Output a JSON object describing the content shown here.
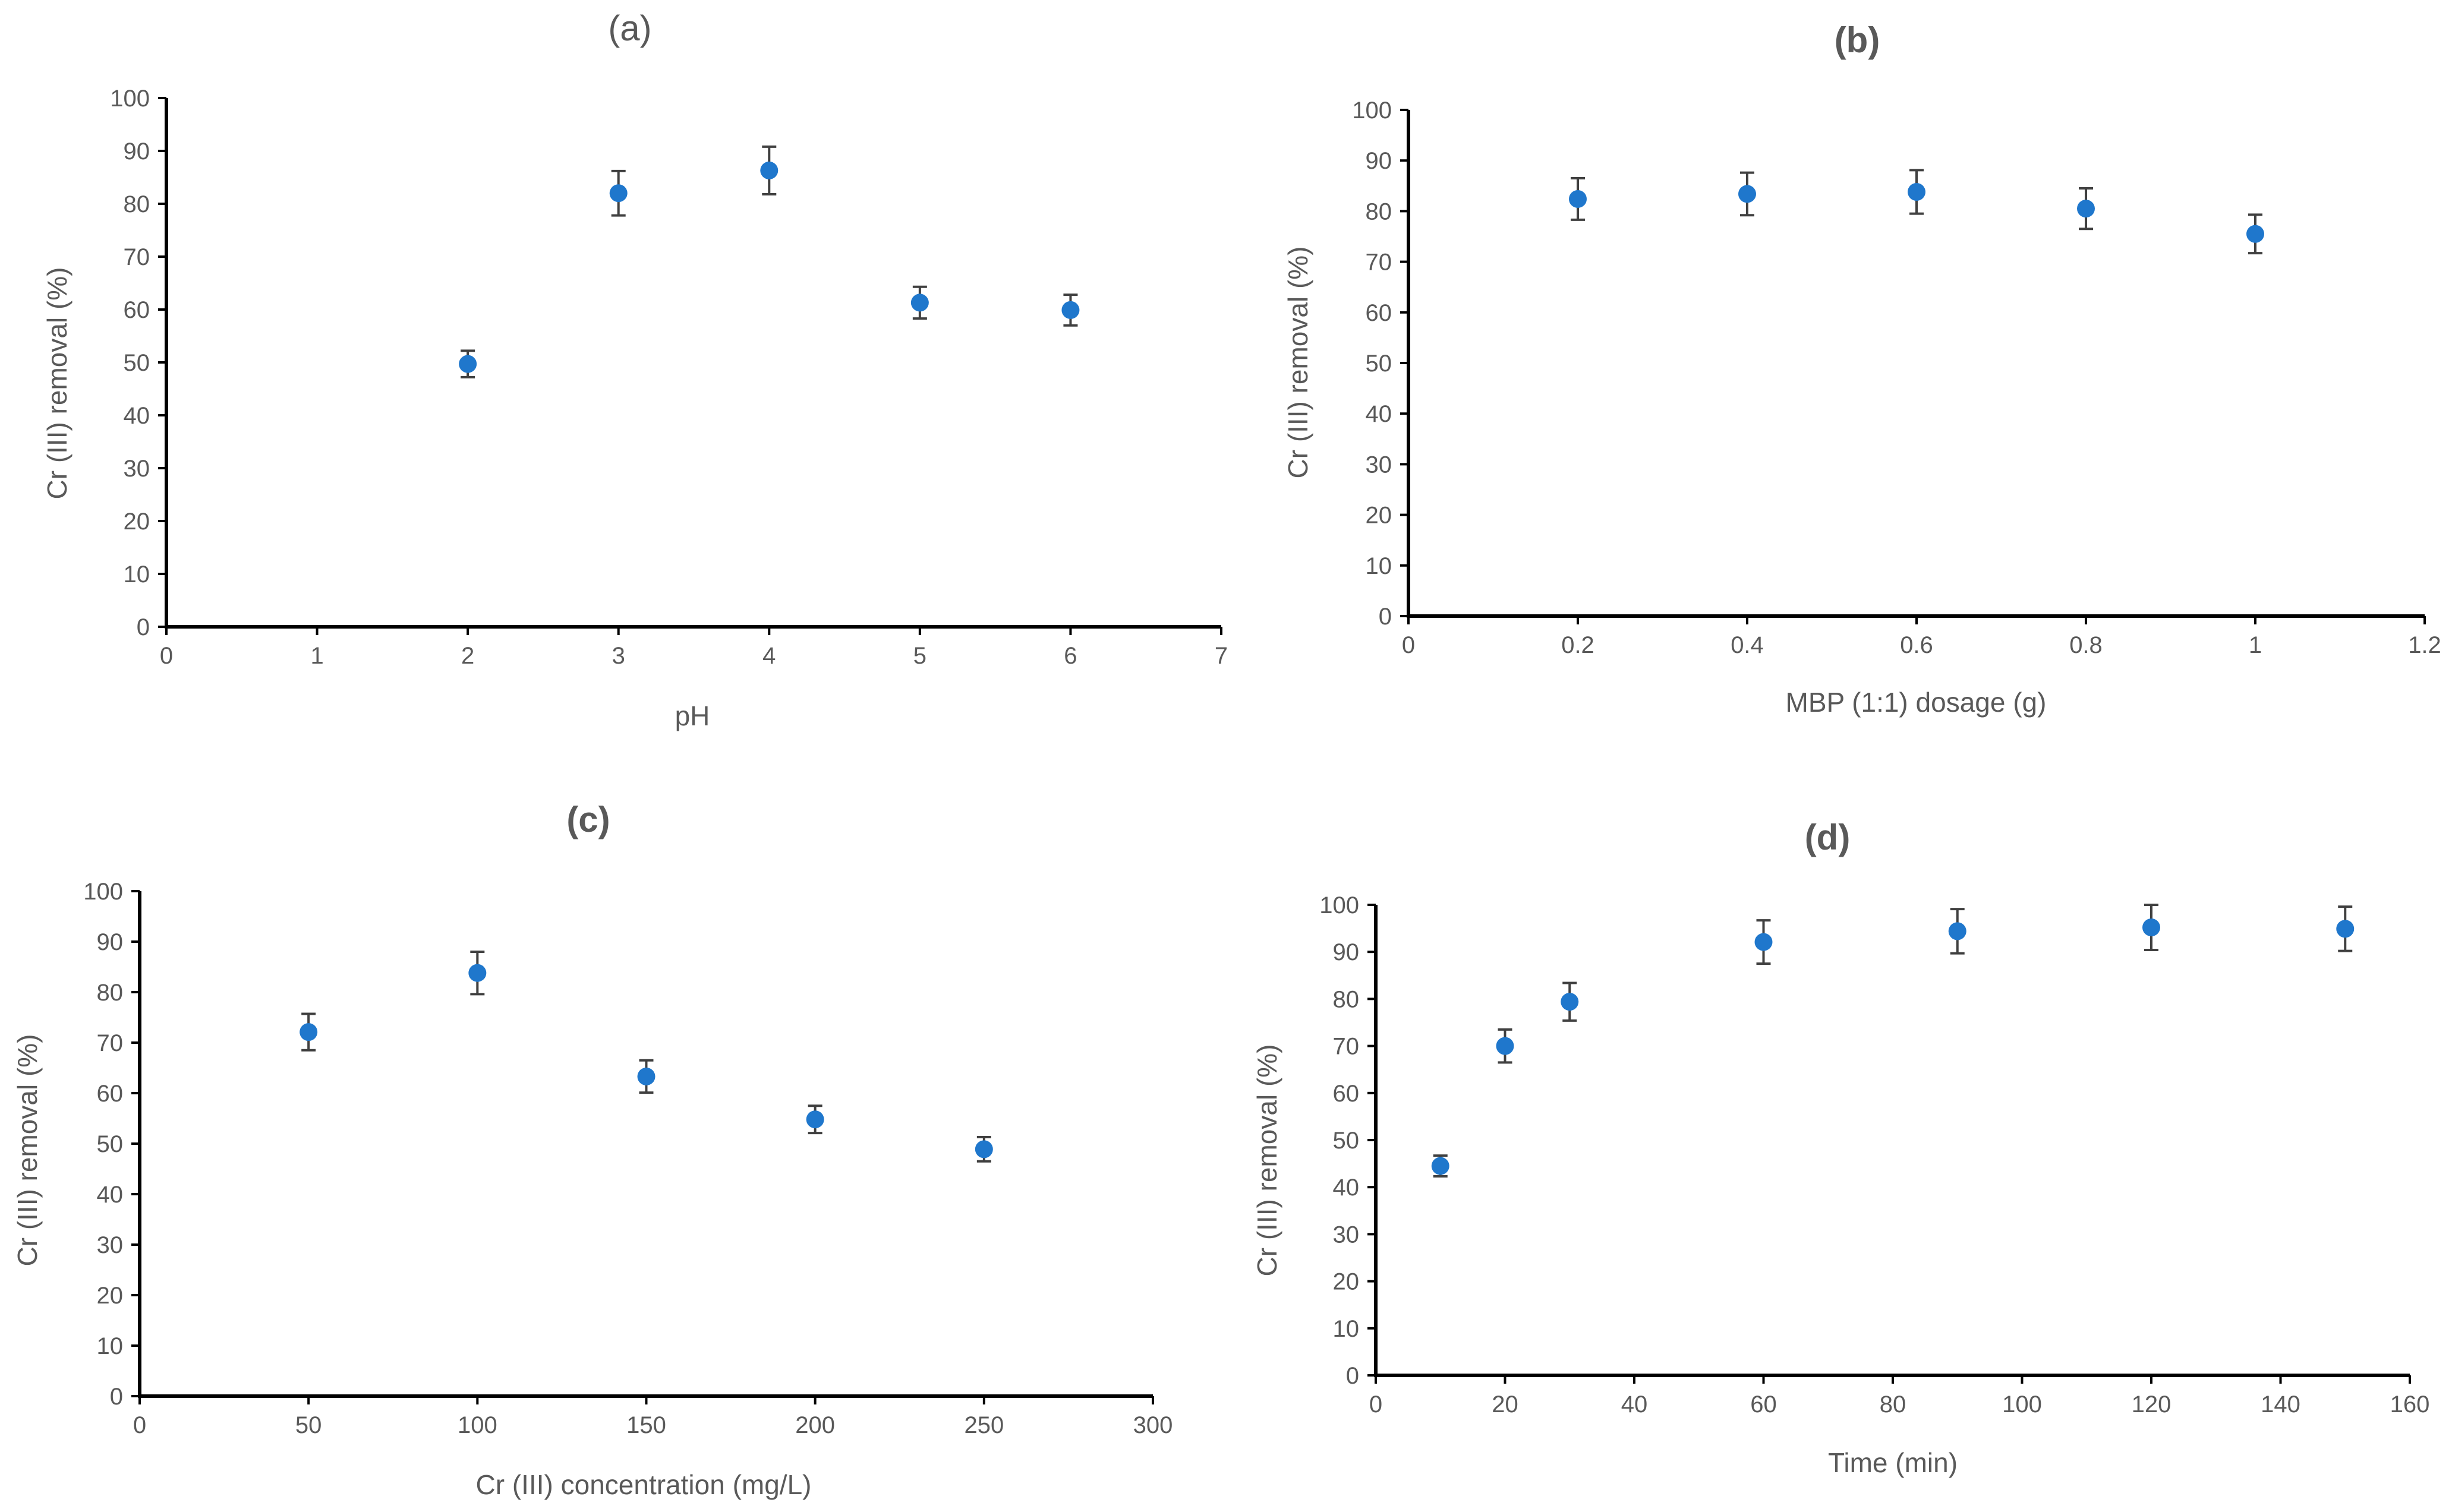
{
  "colors": {
    "marker": "#1f77cc",
    "axis": "#000000",
    "text": "#595959",
    "errorbar": "#404040"
  },
  "chart_data": [
    {
      "id": "a",
      "type": "scatter",
      "title": "(a)",
      "xlabel": "pH",
      "ylabel": "Cr (III) removal (%)",
      "xlim": [
        0,
        7
      ],
      "ylim": [
        0,
        100
      ],
      "xticks": [
        0,
        1,
        2,
        3,
        4,
        5,
        6,
        7
      ],
      "xtick_labels": [
        "0",
        "1",
        "2",
        "3",
        "4",
        "5",
        "6",
        "7"
      ],
      "yticks": [
        0,
        10,
        20,
        30,
        40,
        50,
        60,
        70,
        80,
        90,
        100
      ],
      "ytick_labels": [
        "0",
        "10",
        "20",
        "30",
        "40",
        "50",
        "60",
        "70",
        "80",
        "90",
        "100"
      ],
      "x": [
        2,
        3,
        4,
        5,
        6
      ],
      "y": [
        49.7,
        82,
        86.3,
        61.3,
        59.9
      ],
      "error": [
        2.5,
        4.2,
        4.5,
        3,
        2.9
      ]
    },
    {
      "id": "b",
      "type": "scatter",
      "title": "(b)",
      "xlabel": "MBP (1:1) dosage (g)",
      "ylabel": "Cr (III) removal (%)",
      "xlim": [
        0,
        1.2
      ],
      "ylim": [
        0,
        100
      ],
      "xticks": [
        0,
        0.2,
        0.4,
        0.6,
        0.8,
        1,
        1.2
      ],
      "xtick_labels": [
        "0",
        "0.2",
        "0.4",
        "0.6",
        "0.8",
        "1",
        "1.2"
      ],
      "yticks": [
        0,
        10,
        20,
        30,
        40,
        50,
        60,
        70,
        80,
        90,
        100
      ],
      "ytick_labels": [
        "0",
        "10",
        "20",
        "30",
        "40",
        "50",
        "60",
        "70",
        "80",
        "90",
        "100"
      ],
      "x": [
        0.2,
        0.4,
        0.6,
        0.8,
        1
      ],
      "y": [
        82.4,
        83.4,
        83.8,
        80.5,
        75.5
      ],
      "error": [
        4.1,
        4.2,
        4.3,
        4,
        3.8
      ]
    },
    {
      "id": "c",
      "type": "scatter",
      "title": "(c)",
      "xlabel": "Cr (III)  concentration (mg/L)",
      "ylabel": "Cr (III) removal (%)",
      "xlim": [
        0,
        300
      ],
      "ylim": [
        0,
        100
      ],
      "xticks": [
        0,
        50,
        100,
        150,
        200,
        250,
        300
      ],
      "xtick_labels": [
        "0",
        "50",
        "100",
        "150",
        "200",
        "250",
        "300"
      ],
      "yticks": [
        0,
        10,
        20,
        30,
        40,
        50,
        60,
        70,
        80,
        90,
        100
      ],
      "ytick_labels": [
        "0",
        "10",
        "20",
        "30",
        "40",
        "50",
        "60",
        "70",
        "80",
        "90",
        "100"
      ],
      "x": [
        50,
        100,
        150,
        200,
        250
      ],
      "y": [
        72.1,
        83.8,
        63.3,
        54.8,
        48.9
      ],
      "error": [
        3.6,
        4.2,
        3.2,
        2.7,
        2.4
      ]
    },
    {
      "id": "d",
      "type": "scatter",
      "title": "(d)",
      "xlabel": "Time (min)",
      "ylabel": "Cr (III) removal (%)",
      "xlim": [
        0,
        160
      ],
      "ylim": [
        0,
        100
      ],
      "xticks": [
        0,
        20,
        40,
        60,
        80,
        100,
        120,
        140,
        160
      ],
      "xtick_labels": [
        "0",
        "20",
        "40",
        "60",
        "80",
        "100",
        "120",
        "140",
        "160"
      ],
      "yticks": [
        0,
        10,
        20,
        30,
        40,
        50,
        60,
        70,
        80,
        90,
        100
      ],
      "ytick_labels": [
        "0",
        "10",
        "20",
        "30",
        "40",
        "50",
        "60",
        "70",
        "80",
        "90",
        "100"
      ],
      "x": [
        10,
        20,
        30,
        60,
        90,
        120,
        150
      ],
      "y": [
        44.5,
        70,
        79.4,
        92.1,
        94.4,
        95.2,
        94.9
      ],
      "error": [
        2.2,
        3.5,
        4,
        4.6,
        4.7,
        4.8,
        4.7
      ]
    }
  ]
}
